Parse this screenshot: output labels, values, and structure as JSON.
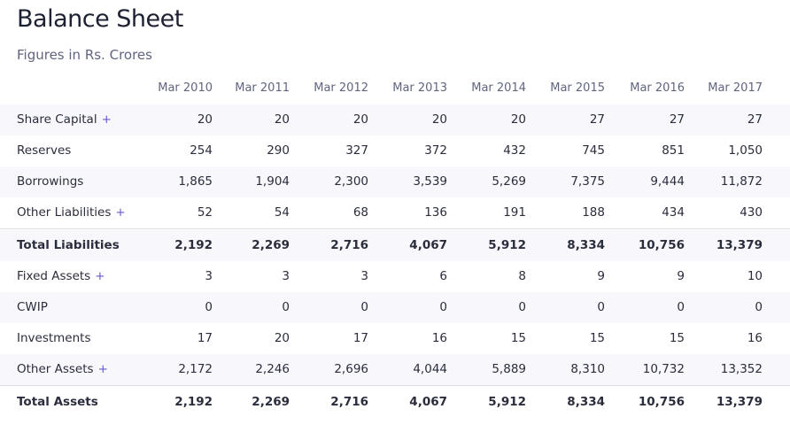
{
  "header": {
    "title": "Balance Sheet",
    "subtitle": "Figures in Rs. Crores"
  },
  "table": {
    "columns": [
      "Mar 2010",
      "Mar 2011",
      "Mar 2012",
      "Mar 2013",
      "Mar 2014",
      "Mar 2015",
      "Mar 2016",
      "Mar 2017"
    ],
    "rows": [
      {
        "label": "Share Capital",
        "toggle": "+",
        "values": [
          "20",
          "20",
          "20",
          "20",
          "20",
          "27",
          "27",
          "27"
        ]
      },
      {
        "label": "Reserves",
        "values": [
          "254",
          "290",
          "327",
          "372",
          "432",
          "745",
          "851",
          "1,050"
        ]
      },
      {
        "label": "Borrowings",
        "values": [
          "1,865",
          "1,904",
          "2,300",
          "3,539",
          "5,269",
          "7,375",
          "9,444",
          "11,872"
        ]
      },
      {
        "label": "Other Liabilities",
        "toggle": "+",
        "values": [
          "52",
          "54",
          "68",
          "136",
          "191",
          "188",
          "434",
          "430"
        ]
      },
      {
        "label": "Total Liabilities",
        "total": true,
        "values": [
          "2,192",
          "2,269",
          "2,716",
          "4,067",
          "5,912",
          "8,334",
          "10,756",
          "13,379"
        ]
      },
      {
        "label": "Fixed Assets",
        "toggle": "+",
        "values": [
          "3",
          "3",
          "3",
          "6",
          "8",
          "9",
          "9",
          "10"
        ]
      },
      {
        "label": "CWIP",
        "values": [
          "0",
          "0",
          "0",
          "0",
          "0",
          "0",
          "0",
          "0"
        ]
      },
      {
        "label": "Investments",
        "values": [
          "17",
          "20",
          "17",
          "16",
          "15",
          "15",
          "15",
          "16"
        ]
      },
      {
        "label": "Other Assets",
        "toggle": "+",
        "values": [
          "2,172",
          "2,246",
          "2,696",
          "4,044",
          "5,889",
          "8,310",
          "10,732",
          "13,352"
        ]
      },
      {
        "label": "Total Assets",
        "total": true,
        "values": [
          "2,192",
          "2,269",
          "2,716",
          "4,067",
          "5,912",
          "8,334",
          "10,756",
          "13,379"
        ]
      }
    ]
  }
}
